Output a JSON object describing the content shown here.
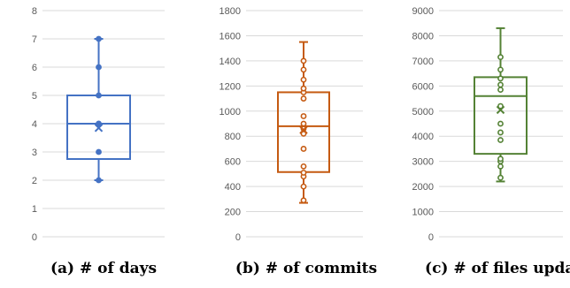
{
  "chart_data": [
    {
      "type": "box",
      "caption": "(a) # of days",
      "color": "#4472C4",
      "ylim": [
        0,
        8
      ],
      "yticks": [
        0,
        1,
        2,
        3,
        4,
        5,
        6,
        7,
        8
      ],
      "whisker_low": 2,
      "q1": 2.75,
      "median": 4,
      "q3": 5,
      "whisker_high": 7,
      "mean": 3.85,
      "points": [
        2,
        3,
        4,
        4,
        5,
        6,
        7
      ]
    },
    {
      "type": "box",
      "caption": "(b) # of commits",
      "color": "#C55A11",
      "ylim": [
        0,
        1800
      ],
      "yticks": [
        0,
        200,
        400,
        600,
        800,
        1000,
        1200,
        1400,
        1600,
        1800
      ],
      "whisker_low": 270,
      "q1": 515,
      "median": 880,
      "q3": 1150,
      "whisker_high": 1550,
      "mean": 850,
      "points": [
        290,
        400,
        480,
        510,
        560,
        700,
        820,
        860,
        900,
        960,
        1100,
        1150,
        1180,
        1250,
        1330,
        1400
      ]
    },
    {
      "type": "box",
      "caption": "(c) # of files updated",
      "color": "#548235",
      "ylim": [
        0,
        9000
      ],
      "yticks": [
        0,
        1000,
        2000,
        3000,
        4000,
        5000,
        6000,
        7000,
        8000,
        9000
      ],
      "whisker_low": 2200,
      "q1": 3300,
      "median": 5600,
      "q3": 6350,
      "whisker_high": 8300,
      "mean": 5050,
      "points": [
        2350,
        2800,
        3000,
        3100,
        3850,
        4150,
        4500,
        5200,
        5850,
        6050,
        6300,
        6650,
        7150
      ]
    }
  ]
}
